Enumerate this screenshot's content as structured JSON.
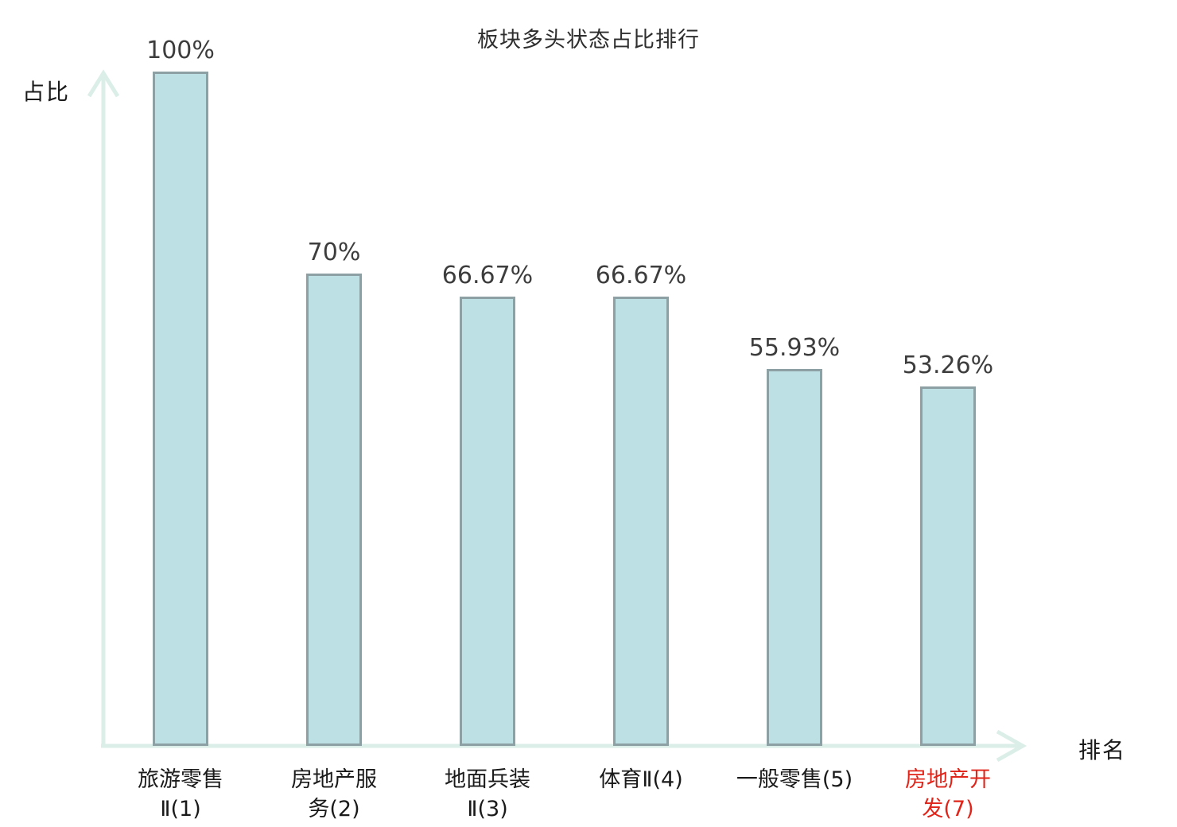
{
  "chart": {
    "title": "板块多头状态占比排行",
    "y_axis_label": "占比",
    "x_axis_label": "排名"
  },
  "chart_data": {
    "type": "bar",
    "title": "板块多头状态占比排行",
    "xlabel": "排名",
    "ylabel": "占比",
    "ylim": [
      0,
      100
    ],
    "grid": false,
    "legend": "none",
    "categories": [
      "旅游零售Ⅱ(1)",
      "房地产服务(2)",
      "地面兵装Ⅱ(3)",
      "体育Ⅱ(4)",
      "一般零售(5)",
      "房地产开发(7)"
    ],
    "category_lines": [
      [
        "旅游零售",
        "Ⅱ(1)"
      ],
      [
        "房地产服",
        "务(2)"
      ],
      [
        "地面兵装",
        "Ⅱ(3)"
      ],
      [
        "体育Ⅱ(4)"
      ],
      [
        "一般零售(5)"
      ],
      [
        "房地产开",
        "发(7)"
      ]
    ],
    "values": [
      100,
      70,
      66.67,
      66.67,
      55.93,
      53.26
    ],
    "value_labels": [
      "100%",
      "70%",
      "66.67%",
      "66.67%",
      "55.93%",
      "53.26%"
    ],
    "highlight_index": 5,
    "colors": {
      "bar_fill": "#bde0e4",
      "bar_border": "#8da1a4",
      "axis": "#dceee8",
      "value_text": "#3d3d3d",
      "label_text": "#1a1a1a",
      "highlight_text": "#e02419",
      "title_text": "#2e2e2e"
    }
  }
}
